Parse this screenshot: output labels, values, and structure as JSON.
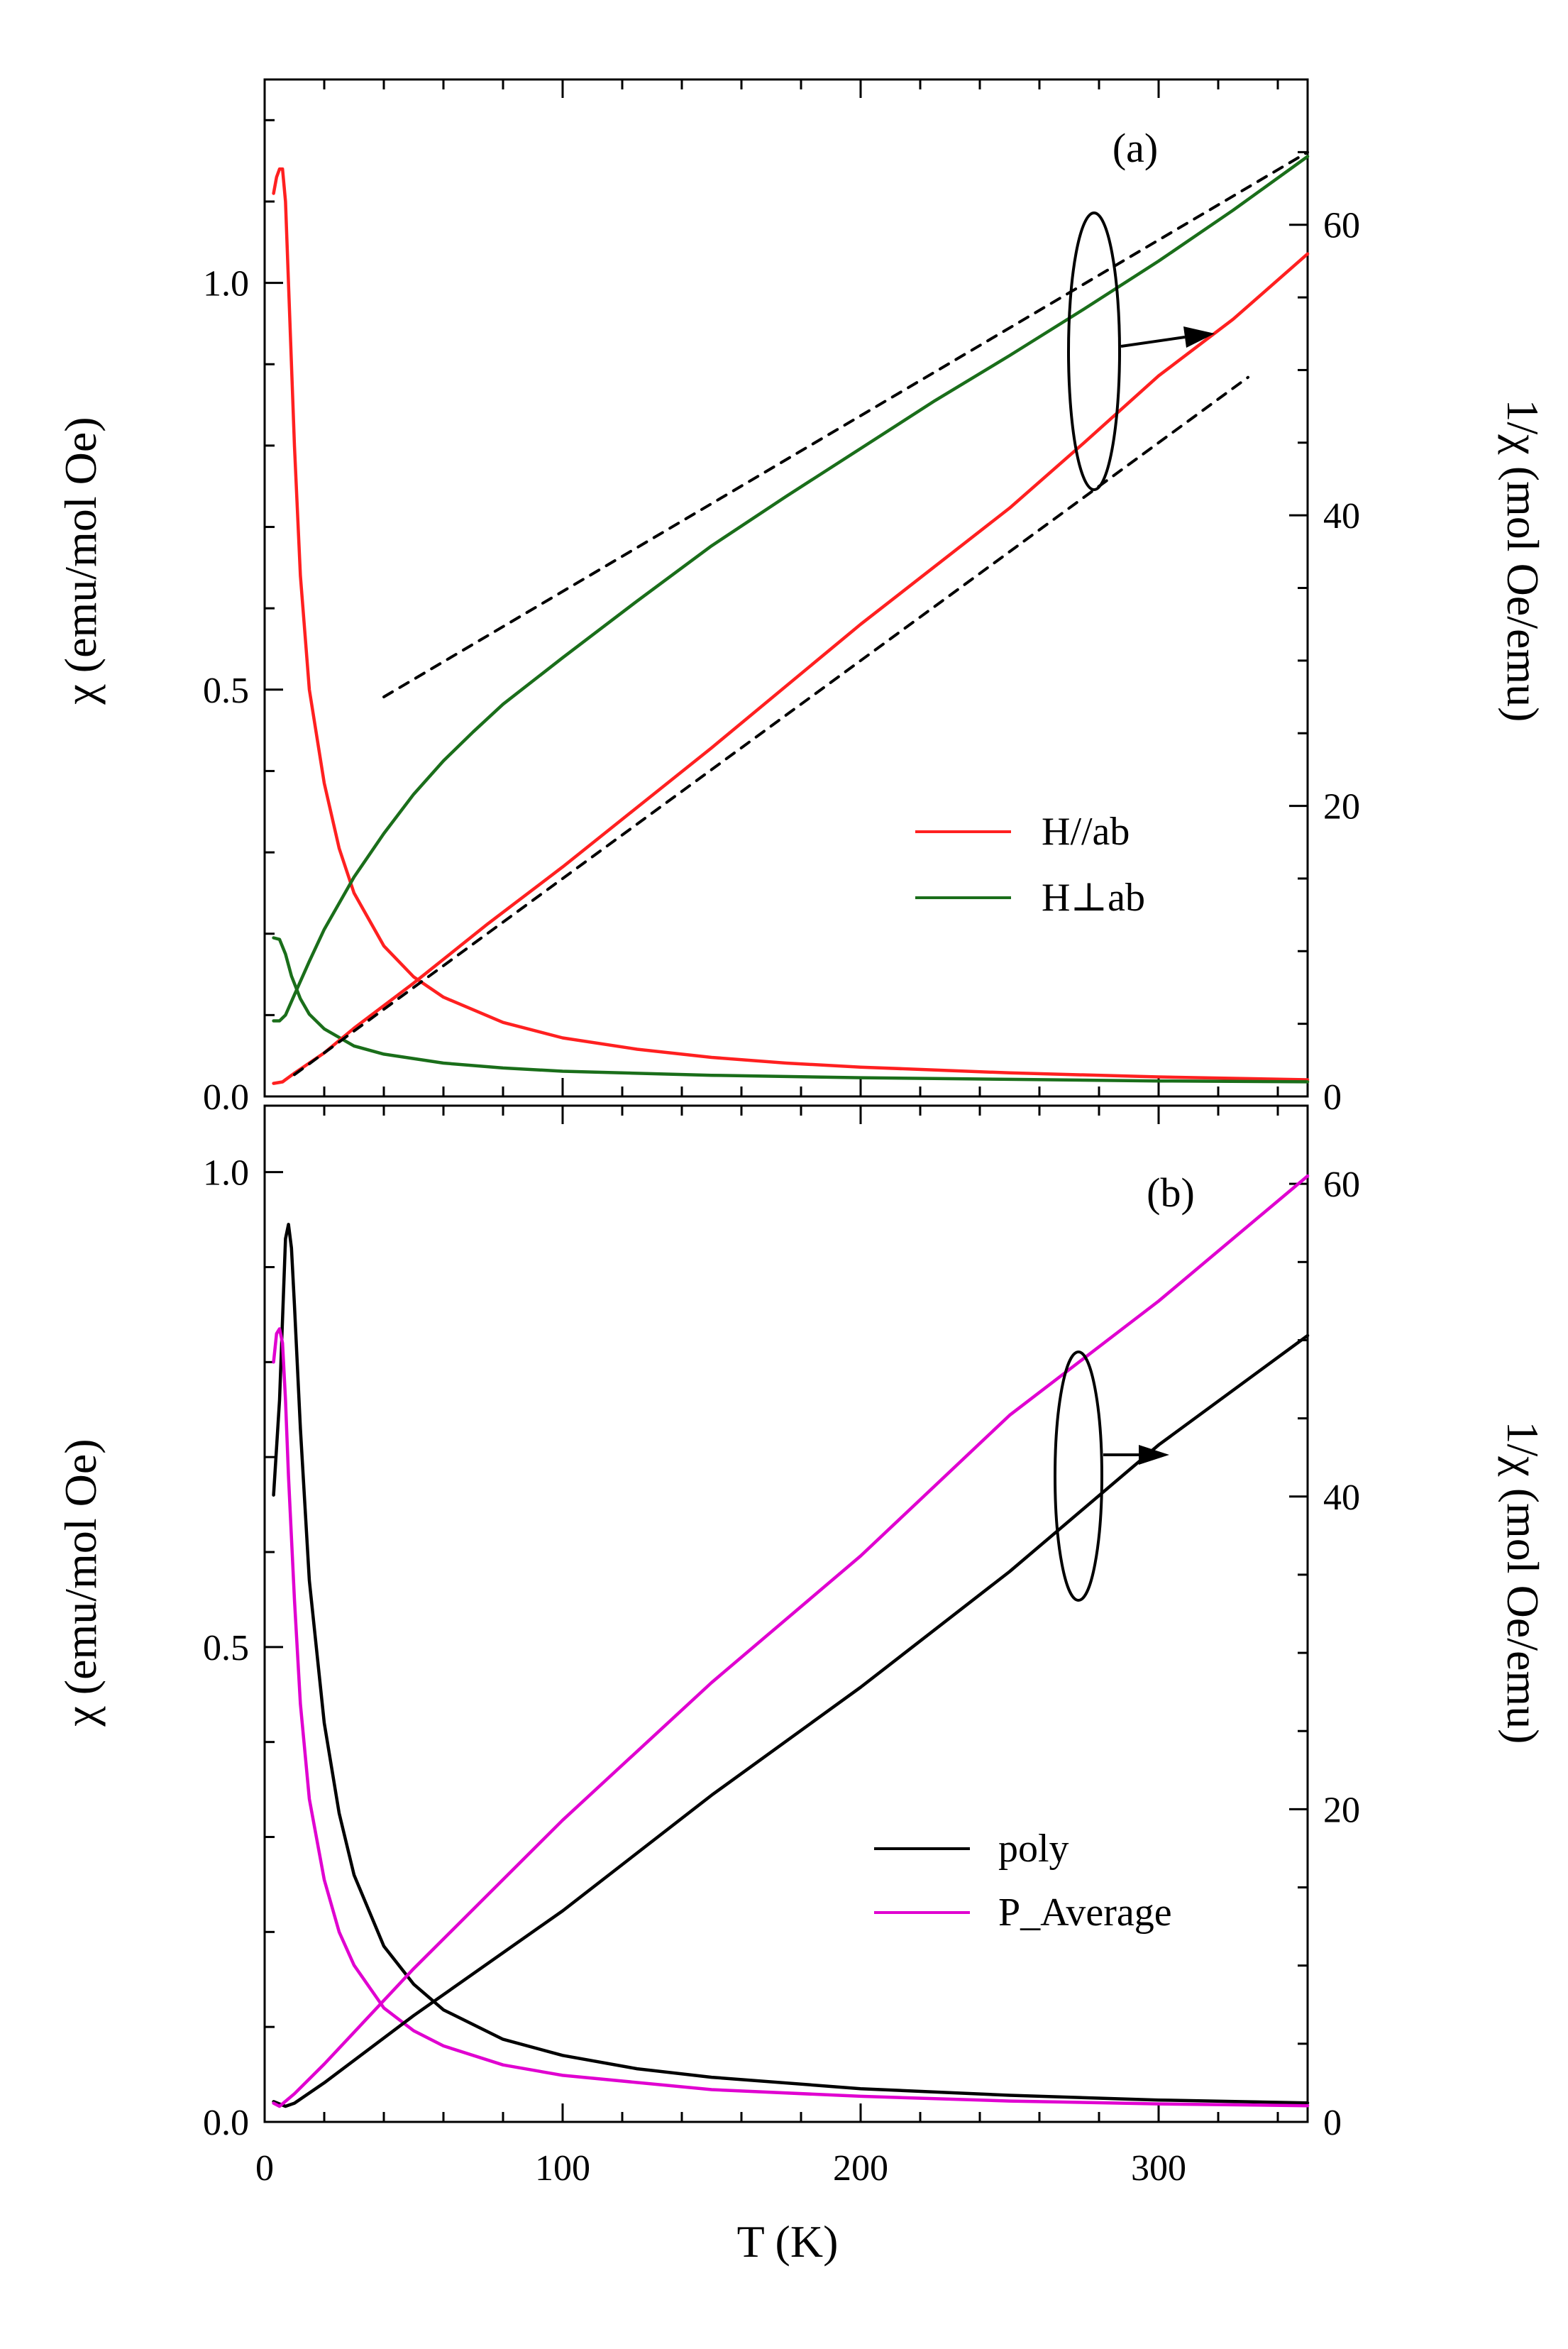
{
  "chart_data": [
    {
      "panel": "(a)",
      "type": "line",
      "x_axis": {
        "label": "T (K)",
        "range": [
          0,
          350
        ],
        "major_ticks": [
          0,
          100,
          200,
          300
        ],
        "minor_step": 20
      },
      "left_axis": {
        "label": "χ (emu/mol Oe)",
        "range": [
          0,
          1.25
        ],
        "ticks": [
          0.0,
          0.5,
          1.0
        ],
        "tick_labels": [
          "0.0",
          "0.5",
          "1.0"
        ],
        "minor_step": 0.1
      },
      "right_axis": {
        "label": "1/χ (mol Oe/emu)",
        "range": [
          0,
          70
        ],
        "ticks": [
          0,
          20,
          40,
          60
        ],
        "tick_labels": [
          "0",
          "20",
          "40",
          "60"
        ],
        "minor_step": 5
      },
      "legend": {
        "position": "right-middle",
        "entries": [
          {
            "label": "H//ab",
            "color": "#ff2020"
          },
          {
            "label": "H⊥ab",
            "color": "#1a6e1a"
          }
        ]
      },
      "series": [
        {
          "name": "H//ab χ",
          "axis": "left",
          "color": "#ff2020",
          "x": [
            3,
            4,
            5,
            6,
            7,
            8,
            10,
            12,
            15,
            20,
            25,
            30,
            40,
            50,
            60,
            80,
            100,
            125,
            150,
            175,
            200,
            250,
            300,
            350
          ],
          "y": [
            1.11,
            1.13,
            1.14,
            1.14,
            1.1,
            1.0,
            0.8,
            0.64,
            0.5,
            0.385,
            0.305,
            0.25,
            0.185,
            0.147,
            0.122,
            0.091,
            0.072,
            0.058,
            0.048,
            0.041,
            0.036,
            0.029,
            0.024,
            0.0205
          ]
        },
        {
          "name": "H⊥ab χ",
          "axis": "left",
          "color": "#1a6e1a",
          "x": [
            3,
            5,
            7,
            9,
            12,
            15,
            20,
            30,
            40,
            60,
            80,
            100,
            150,
            200,
            250,
            300,
            350
          ],
          "y": [
            0.195,
            0.193,
            0.175,
            0.148,
            0.12,
            0.101,
            0.083,
            0.062,
            0.052,
            0.041,
            0.035,
            0.031,
            0.026,
            0.023,
            0.021,
            0.019,
            0.018
          ]
        },
        {
          "name": "H//ab 1/χ",
          "axis": "right",
          "color": "#ff2020",
          "x": [
            3,
            6,
            10,
            20,
            30,
            50,
            75,
            100,
            150,
            200,
            250,
            275,
            300,
            325,
            350
          ],
          "y": [
            0.9,
            1.0,
            1.6,
            3.0,
            4.7,
            7.8,
            11.9,
            15.8,
            24.0,
            32.5,
            40.5,
            45.0,
            49.6,
            53.5,
            58.0
          ]
        },
        {
          "name": "H⊥ab 1/χ",
          "axis": "right",
          "color": "#1a6e1a",
          "x": [
            3,
            5,
            7,
            10,
            15,
            20,
            30,
            40,
            50,
            60,
            70,
            80,
            100,
            125,
            150,
            175,
            200,
            225,
            250,
            275,
            300,
            325,
            350
          ],
          "y": [
            5.2,
            5.2,
            5.6,
            7.0,
            9.3,
            11.5,
            15.1,
            18.1,
            20.8,
            23.1,
            25.1,
            27.0,
            30.2,
            34.1,
            37.9,
            41.3,
            44.6,
            47.9,
            51.0,
            54.2,
            57.5,
            61.0,
            64.7
          ]
        },
        {
          "name": "H//ab 1/χ linear fit",
          "axis": "right",
          "color": "#000000",
          "dashed": true,
          "x": [
            10,
            330
          ],
          "y": [
            1.5,
            49.5
          ]
        },
        {
          "name": "H⊥ab 1/χ linear fit",
          "axis": "right",
          "color": "#000000",
          "dashed": true,
          "x": [
            40,
            350
          ],
          "y": [
            27.5,
            65.0
          ]
        }
      ],
      "annotations": [
        {
          "type": "ellipse-arrow",
          "target_axis": "right",
          "x": 280,
          "arrow_to_x": 320
        }
      ]
    },
    {
      "panel": "(b)",
      "type": "line",
      "x_axis": {
        "label": "T (K)",
        "range": [
          0,
          350
        ],
        "major_ticks": [
          0,
          100,
          200,
          300
        ],
        "tick_labels": [
          "0",
          "100",
          "200",
          "300"
        ],
        "minor_step": 20
      },
      "left_axis": {
        "label": "χ (emu/mol Oe)",
        "range": [
          0,
          1.07
        ],
        "ticks": [
          0.0,
          0.5,
          1.0
        ],
        "tick_labels": [
          "0.0",
          "0.5",
          "1.0"
        ],
        "minor_step": 0.1
      },
      "right_axis": {
        "label": "1/χ (mol Oe/emu)",
        "range": [
          0,
          65
        ],
        "ticks": [
          0,
          20,
          40,
          60
        ],
        "tick_labels": [
          "0",
          "20",
          "40",
          "60"
        ],
        "minor_step": 5
      },
      "legend": {
        "position": "right-lower",
        "entries": [
          {
            "label": "poly",
            "color": "#000000"
          },
          {
            "label": "P_Average",
            "color": "#e000d0"
          }
        ]
      },
      "series": [
        {
          "name": "poly χ",
          "axis": "left",
          "color": "#000000",
          "x": [
            3,
            5,
            7,
            8,
            9,
            10,
            12,
            15,
            20,
            25,
            30,
            40,
            50,
            60,
            80,
            100,
            125,
            150,
            200,
            250,
            300,
            350
          ],
          "y": [
            0.66,
            0.76,
            0.93,
            0.945,
            0.92,
            0.86,
            0.73,
            0.57,
            0.42,
            0.325,
            0.26,
            0.185,
            0.145,
            0.118,
            0.087,
            0.07,
            0.056,
            0.047,
            0.035,
            0.028,
            0.023,
            0.02
          ]
        },
        {
          "name": "P_Average χ",
          "axis": "left",
          "color": "#e000d0",
          "x": [
            3,
            4,
            5,
            6,
            7,
            8,
            10,
            12,
            15,
            20,
            25,
            30,
            40,
            50,
            60,
            80,
            100,
            150,
            200,
            250,
            300,
            350
          ],
          "y": [
            0.8,
            0.83,
            0.835,
            0.82,
            0.76,
            0.68,
            0.55,
            0.44,
            0.34,
            0.255,
            0.2,
            0.165,
            0.12,
            0.096,
            0.08,
            0.06,
            0.049,
            0.034,
            0.027,
            0.022,
            0.019,
            0.017
          ]
        },
        {
          "name": "poly 1/χ",
          "axis": "right",
          "color": "#000000",
          "x": [
            3,
            7,
            10,
            20,
            50,
            100,
            150,
            200,
            250,
            300,
            350
          ],
          "y": [
            1.3,
            1.0,
            1.2,
            2.5,
            6.8,
            13.5,
            20.9,
            27.8,
            35.2,
            43.3,
            50.3
          ]
        },
        {
          "name": "P_Average 1/χ",
          "axis": "right",
          "color": "#e000d0",
          "x": [
            3,
            5,
            10,
            20,
            50,
            100,
            150,
            200,
            250,
            300,
            350
          ],
          "y": [
            1.2,
            1.0,
            1.8,
            3.7,
            9.8,
            19.3,
            28.1,
            36.2,
            45.2,
            52.5,
            60.5
          ]
        }
      ],
      "annotations": [
        {
          "type": "ellipse-arrow",
          "target_axis": "right",
          "x": 272,
          "arrow_to_x": 300
        }
      ]
    }
  ]
}
